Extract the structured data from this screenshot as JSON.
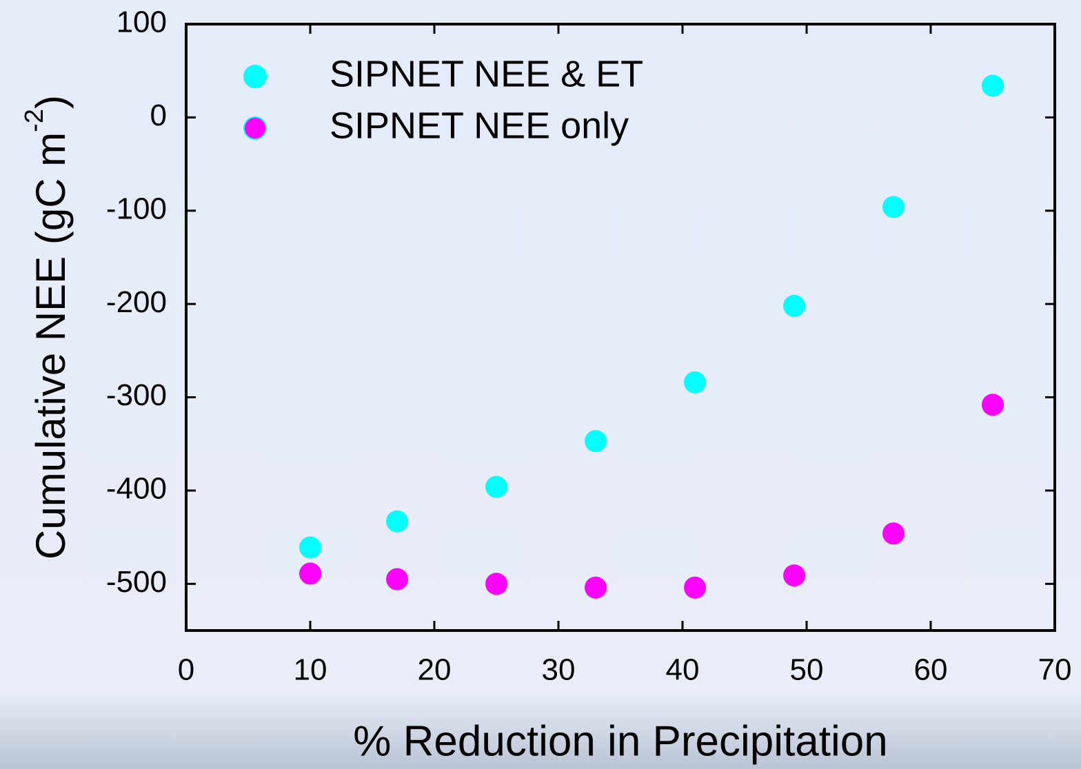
{
  "chart_data": {
    "type": "scatter",
    "x_label": "% Reduction in Precipitation",
    "y_label": {
      "text": "Cumulative NEE (gC m",
      "superscript": "-2",
      "suffix": ")"
    },
    "xlim": [
      0,
      70
    ],
    "xticks": [
      0,
      10,
      20,
      30,
      40,
      50,
      60,
      70
    ],
    "ylim": [
      -550,
      100
    ],
    "yticks": [
      -500,
      -400,
      -300,
      -200,
      -100,
      0,
      100
    ],
    "legend": "upper left",
    "series": [
      {
        "name": "SIPNET NEE & ET",
        "color": "#00ffff",
        "x": [
          10,
          17,
          25,
          33,
          41,
          49,
          57,
          65
        ],
        "values": [
          -461,
          -433,
          -396,
          -347,
          -284,
          -202,
          -96,
          34
        ]
      },
      {
        "name": "SIPNET NEE only",
        "color": "#ff00ff",
        "x": [
          10,
          17,
          25,
          33,
          41,
          49,
          57,
          65
        ],
        "values": [
          -489,
          -495,
          -500,
          -504,
          -504,
          -491,
          -446,
          -308
        ]
      }
    ]
  }
}
